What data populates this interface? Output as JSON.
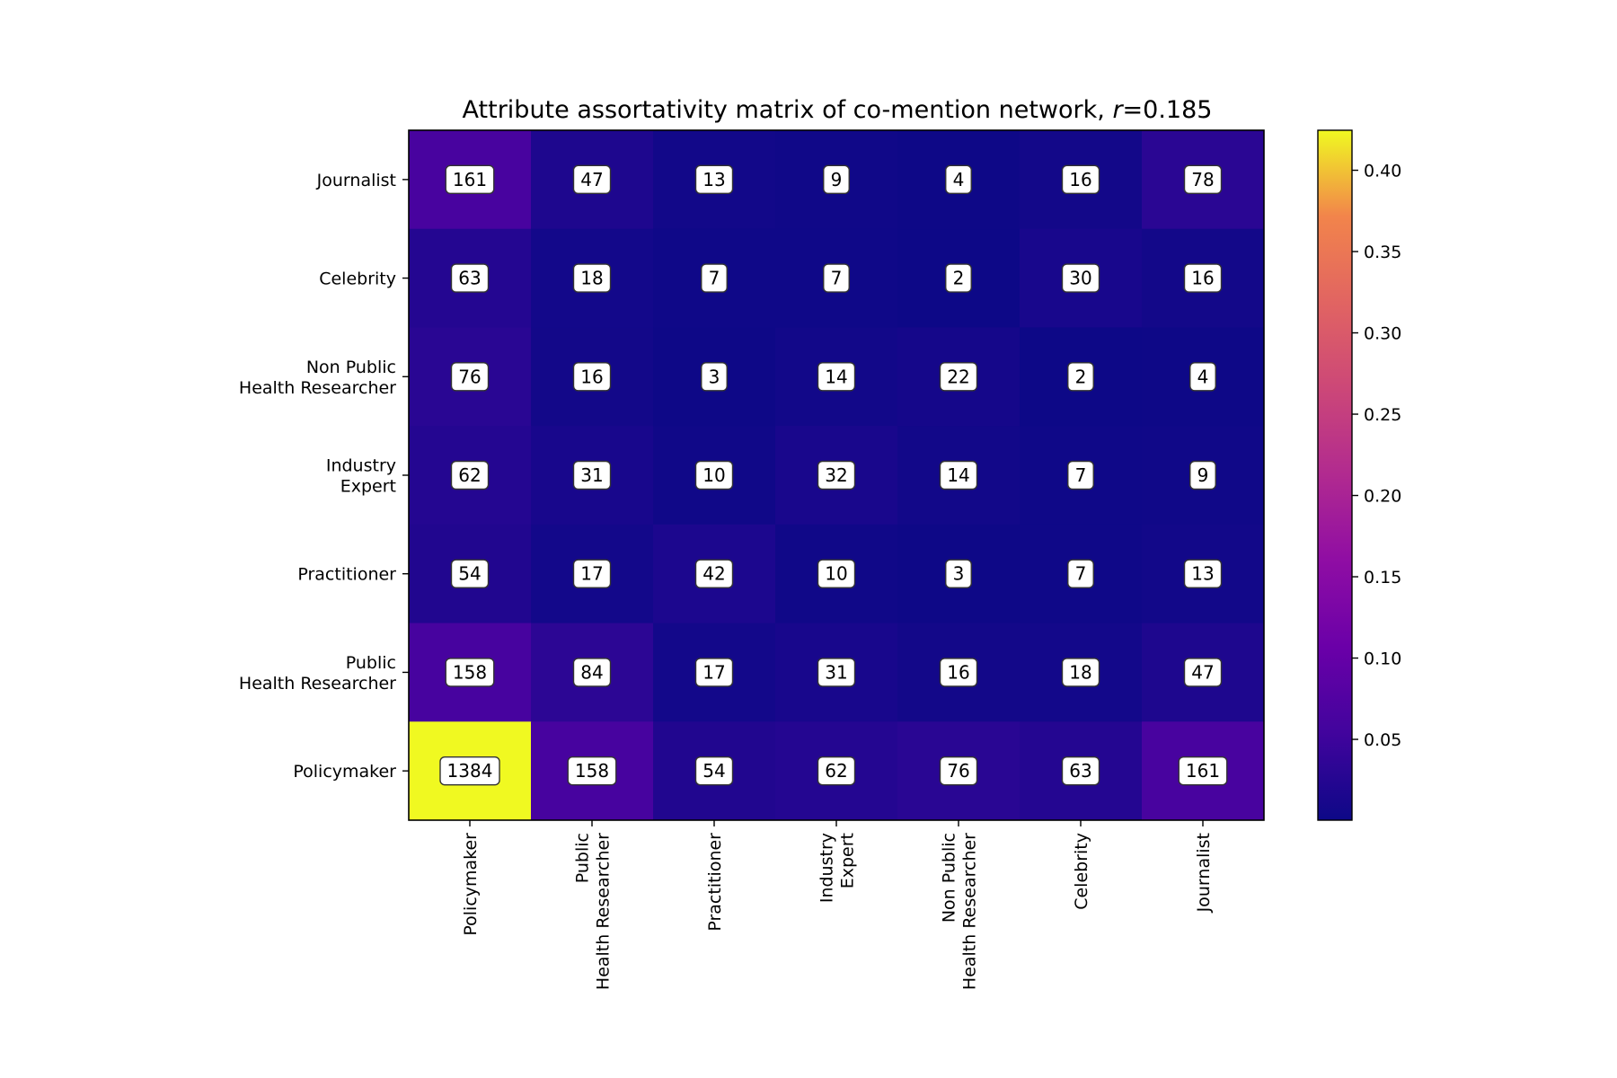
{
  "chart_data": {
    "type": "heatmap",
    "title": {
      "prefix": "Attribute assortativity matrix of co-mention network, ",
      "symbol": "r",
      "suffix": "=0.185"
    },
    "xlabel": "",
    "ylabel": "",
    "colormap": "plasma",
    "grid": false,
    "legend": "colorbar-right",
    "x_categories": [
      [
        "Policymaker"
      ],
      [
        "Public",
        "Health Researcher"
      ],
      [
        "Practitioner"
      ],
      [
        "Industry",
        "Expert"
      ],
      [
        "Non Public",
        "Health Researcher"
      ],
      [
        "Celebrity"
      ],
      [
        "Journalist"
      ]
    ],
    "y_categories_top_to_bottom": [
      [
        "Journalist"
      ],
      [
        "Celebrity"
      ],
      [
        "Non Public",
        "Health Researcher"
      ],
      [
        "Industry",
        "Expert"
      ],
      [
        "Practitioner"
      ],
      [
        "Public",
        "Health Researcher"
      ],
      [
        "Policymaker"
      ]
    ],
    "cell_labels_top_to_bottom": [
      [
        161,
        47,
        13,
        9,
        4,
        16,
        78
      ],
      [
        63,
        18,
        7,
        7,
        2,
        30,
        16
      ],
      [
        76,
        16,
        3,
        14,
        22,
        2,
        4
      ],
      [
        62,
        31,
        10,
        32,
        14,
        7,
        9
      ],
      [
        54,
        17,
        42,
        10,
        3,
        7,
        13
      ],
      [
        158,
        84,
        17,
        31,
        16,
        18,
        47
      ],
      [
        1384,
        158,
        54,
        62,
        76,
        63,
        161
      ]
    ],
    "colorbar": {
      "range": [
        0.0003,
        0.4246
      ],
      "ticks": [
        "0.05",
        "0.10",
        "0.15",
        "0.20",
        "0.25",
        "0.30",
        "0.35",
        "0.40"
      ]
    }
  }
}
